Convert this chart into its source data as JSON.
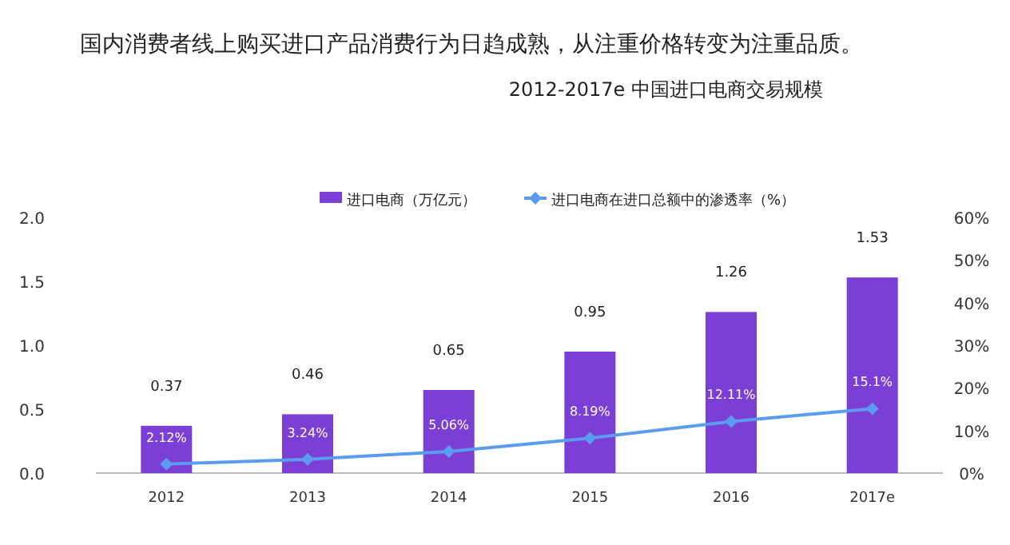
{
  "chart_data": {
    "type": "bar",
    "title": "国内消费者线上购买进口产品消费行为日趋成熟，从注重价格转变为注重品质。",
    "subtitle": "2012-2017e 中国进口电商交易规模",
    "categories": [
      "2012",
      "2013",
      "2014",
      "2015",
      "2016",
      "2017e"
    ],
    "series": [
      {
        "name": "进口电商（万亿元）",
        "color": "#7b3fd6",
        "values": [
          0.37,
          0.46,
          0.65,
          0.95,
          1.26,
          1.53
        ],
        "value_labels": [
          "0.37",
          "0.46",
          "0.65",
          "0.95",
          "1.26",
          "1.53"
        ]
      },
      {
        "type": "line",
        "axis": "y2",
        "name": "进口电商在进口总额中的渗透率（%）",
        "color": "#5b9bf0",
        "values": [
          2.12,
          3.24,
          5.06,
          8.19,
          12.11,
          15.1
        ],
        "value_labels": [
          "2.12%",
          "3.24%",
          "5.06%",
          "8.19%",
          "12.11%",
          "15.1%"
        ]
      }
    ],
    "ylim": [
      0,
      2
    ],
    "yticks": [
      {
        "value": 0,
        "label": "0.0"
      },
      {
        "value": 0.5,
        "label": "0.5"
      },
      {
        "value": 1,
        "label": "1.0"
      },
      {
        "value": 1.5,
        "label": "1.5"
      },
      {
        "value": 2,
        "label": "2.0"
      }
    ],
    "y2lim": [
      0,
      60
    ],
    "y2ticks": [
      {
        "value": 0,
        "label": "0%"
      },
      {
        "value": 10,
        "label": "10%"
      },
      {
        "value": 20,
        "label": "20%"
      },
      {
        "value": 30,
        "label": "30%"
      },
      {
        "value": 40,
        "label": "40%"
      },
      {
        "value": 50,
        "label": "50%"
      },
      {
        "value": 60,
        "label": "60%"
      }
    ],
    "legend": "top",
    "marker": "diamond"
  }
}
